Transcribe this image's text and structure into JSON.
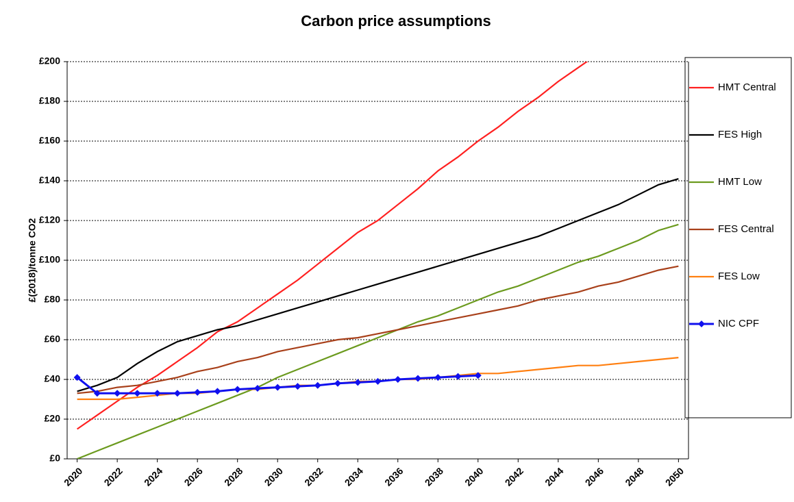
{
  "chart_data": {
    "type": "line",
    "title": "Carbon price assumptions",
    "y_label": "£(2018)/tonne CO2",
    "x": [
      2020,
      2021,
      2022,
      2023,
      2024,
      2025,
      2026,
      2027,
      2028,
      2029,
      2030,
      2031,
      2032,
      2033,
      2034,
      2035,
      2036,
      2037,
      2038,
      2039,
      2040,
      2041,
      2042,
      2043,
      2044,
      2045,
      2046,
      2047,
      2048,
      2049,
      2050
    ],
    "xlim": [
      2019.5,
      2050.5
    ],
    "xticks": [
      2020,
      2022,
      2024,
      2026,
      2028,
      2030,
      2032,
      2034,
      2036,
      2038,
      2040,
      2042,
      2044,
      2046,
      2048,
      2050
    ],
    "ylim": [
      0,
      200
    ],
    "yticks": [
      {
        "value": 0,
        "label": "£0"
      },
      {
        "value": 20,
        "label": "£20"
      },
      {
        "value": 40,
        "label": "£40"
      },
      {
        "value": 60,
        "label": "£60"
      },
      {
        "value": 80,
        "label": "£80"
      },
      {
        "value": 100,
        "label": "£100"
      },
      {
        "value": 120,
        "label": "£120"
      },
      {
        "value": 140,
        "label": "£140"
      },
      {
        "value": 160,
        "label": "£160"
      },
      {
        "value": 180,
        "label": "£180"
      },
      {
        "value": 200,
        "label": "£200"
      }
    ],
    "grid": true,
    "legend": "right",
    "series": [
      {
        "name": "HMT Central",
        "color": "#ff2020",
        "values": [
          15,
          22,
          29,
          36,
          42,
          49,
          56,
          64,
          69,
          76,
          83,
          90,
          98,
          106,
          114,
          120,
          128,
          136,
          145,
          152,
          160,
          167,
          175,
          182,
          190,
          197,
          204,
          null,
          null,
          null,
          null
        ]
      },
      {
        "name": "FES High",
        "color": "#000000",
        "values": [
          34,
          37,
          41,
          48,
          54,
          59,
          62,
          65,
          67,
          70,
          73,
          76,
          79,
          82,
          85,
          88,
          91,
          94,
          97,
          100,
          103,
          106,
          109,
          112,
          116,
          120,
          124,
          128,
          133,
          138,
          141
        ]
      },
      {
        "name": "HMT Low",
        "color": "#6b9a1e",
        "values": [
          0,
          4,
          8,
          12,
          16,
          20,
          24,
          28,
          32,
          36,
          41,
          45,
          49,
          53,
          57,
          61,
          65,
          69,
          72,
          76,
          80,
          84,
          87,
          91,
          95,
          99,
          102,
          106,
          110,
          115,
          118
        ]
      },
      {
        "name": "FES Central",
        "color": "#a8401a",
        "values": [
          33,
          34,
          36,
          37,
          39,
          41,
          44,
          46,
          49,
          51,
          54,
          56,
          58,
          60,
          61,
          63,
          65,
          67,
          69,
          71,
          73,
          75,
          77,
          80,
          82,
          84,
          87,
          89,
          92,
          95,
          97
        ]
      },
      {
        "name": "FES Low",
        "color": "#ff7f10",
        "values": [
          30,
          30,
          30,
          31,
          32,
          33,
          33,
          34,
          35,
          35,
          36,
          37,
          37,
          38,
          39,
          39,
          40,
          40,
          41,
          42,
          43,
          43,
          44,
          45,
          46,
          47,
          47,
          48,
          49,
          50,
          51
        ]
      },
      {
        "name": "NIC CPF",
        "color": "#1010ee",
        "marker": "diamond",
        "values": [
          41,
          33,
          33,
          33,
          33,
          33,
          33.5,
          34,
          35,
          35.5,
          36,
          36.5,
          37,
          38,
          38.5,
          39,
          40,
          40.5,
          41,
          41.5,
          42,
          null,
          null,
          null,
          null,
          null,
          null,
          null,
          null,
          null,
          null
        ]
      }
    ]
  }
}
